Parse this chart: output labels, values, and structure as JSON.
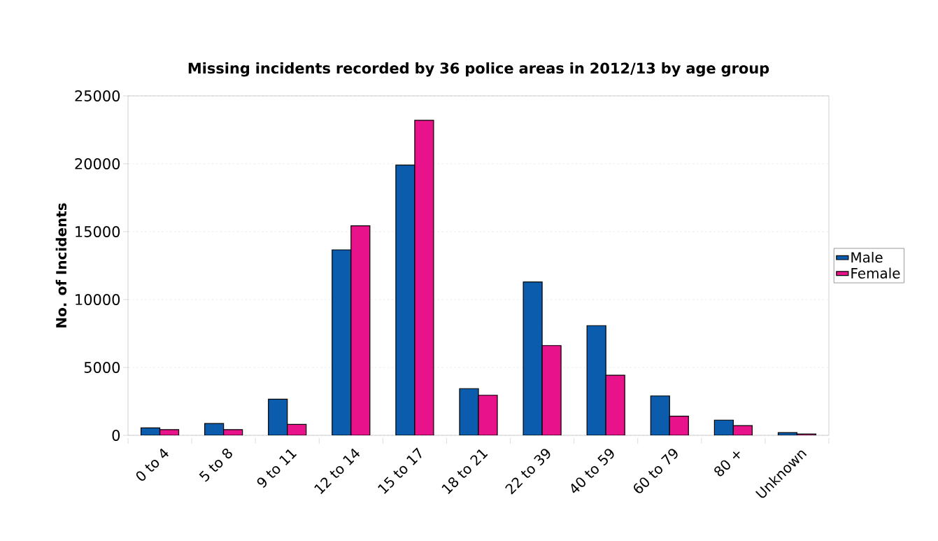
{
  "chart_data": {
    "type": "bar",
    "title": "Missing incidents recorded by 36 police areas in 2012/13 by age group",
    "ylabel": "No. of Incidents",
    "categories": [
      "0 to 4",
      "5 to 8",
      "9 to 11",
      "12 to 14",
      "15 to 17",
      "18 to 21",
      "22 to 39",
      "40 to 59",
      "60 to 79",
      "80 +",
      "Unknown"
    ],
    "series": [
      {
        "name": "Male",
        "color": "#0b5cad",
        "values": [
          550,
          870,
          2660,
          13660,
          19900,
          3440,
          11290,
          8080,
          2900,
          1120,
          200
        ]
      },
      {
        "name": "Female",
        "color": "#e8128a",
        "values": [
          420,
          420,
          810,
          15430,
          23200,
          2950,
          6610,
          4430,
          1410,
          720,
          100
        ]
      }
    ],
    "ylim": [
      0,
      25000
    ],
    "yticks": [
      0,
      5000,
      10000,
      15000,
      20000,
      25000
    ],
    "grid": "y",
    "legend": "right"
  }
}
